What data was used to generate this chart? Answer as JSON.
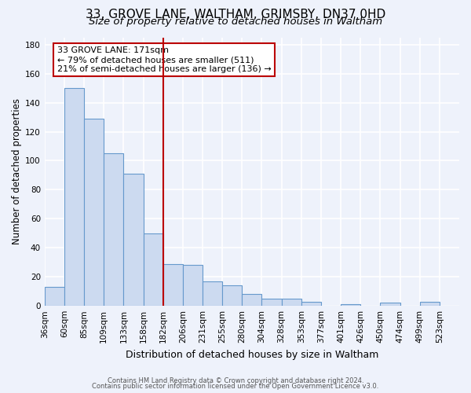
{
  "title": "33, GROVE LANE, WALTHAM, GRIMSBY, DN37 0HD",
  "subtitle": "Size of property relative to detached houses in Waltham",
  "xlabel": "Distribution of detached houses by size in Waltham",
  "ylabel": "Number of detached properties",
  "bin_labels": [
    "36sqm",
    "60sqm",
    "85sqm",
    "109sqm",
    "133sqm",
    "158sqm",
    "182sqm",
    "206sqm",
    "231sqm",
    "255sqm",
    "280sqm",
    "304sqm",
    "328sqm",
    "353sqm",
    "377sqm",
    "401sqm",
    "426sqm",
    "450sqm",
    "474sqm",
    "499sqm",
    "523sqm"
  ],
  "bar_values": [
    13,
    150,
    129,
    105,
    91,
    50,
    29,
    28,
    17,
    14,
    8,
    5,
    5,
    3,
    0,
    1,
    0,
    2,
    0,
    3,
    0
  ],
  "bar_color": "#ccdaf0",
  "bar_edge_color": "#6699cc",
  "vline_index": 6,
  "vline_color": "#bb0000",
  "annotation_text": "33 GROVE LANE: 171sqm\n← 79% of detached houses are smaller (511)\n21% of semi-detached houses are larger (136) →",
  "annotation_box_edge_color": "#bb0000",
  "annotation_box_face_color": "#ffffff",
  "ylim": [
    0,
    185
  ],
  "yticks": [
    0,
    20,
    40,
    60,
    80,
    100,
    120,
    140,
    160,
    180
  ],
  "background_color": "#eef2fb",
  "grid_color": "#ffffff",
  "footer_line1": "Contains HM Land Registry data © Crown copyright and database right 2024.",
  "footer_line2": "Contains public sector information licensed under the Open Government Licence v3.0.",
  "title_fontsize": 11,
  "subtitle_fontsize": 9.5,
  "ylabel_fontsize": 8.5,
  "xlabel_fontsize": 9,
  "tick_fontsize": 7.5,
  "ann_fontsize": 8
}
